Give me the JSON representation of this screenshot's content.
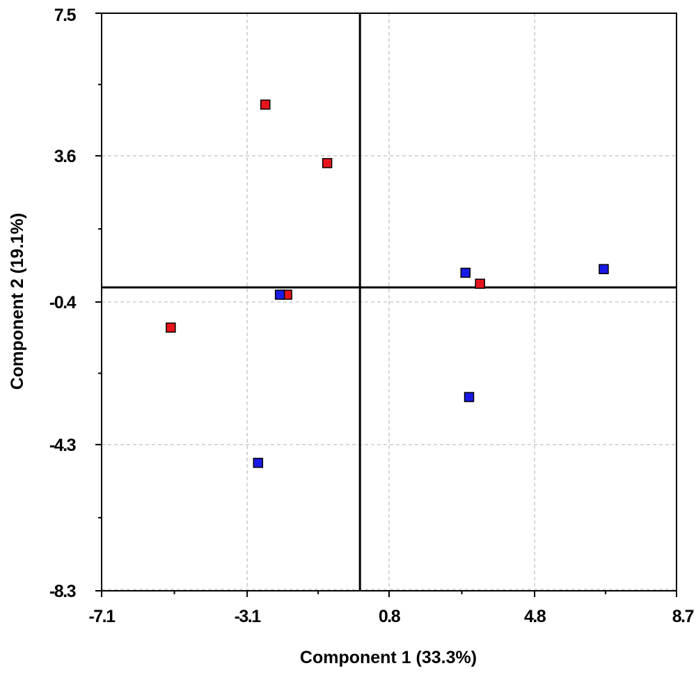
{
  "chart_data": {
    "type": "scatter",
    "title": "",
    "xlabel": "Component 1 (33.3%)",
    "ylabel": "Component 2 (19.1%)",
    "xlim": [
      -7.1,
      8.7
    ],
    "ylim": [
      -8.3,
      7.5
    ],
    "x_ticks": [
      "-7.1",
      "-3.1",
      "0.8",
      "4.8",
      "8.7"
    ],
    "y_ticks": [
      "7.5",
      "3.6",
      "-0.4",
      "-4.3",
      "-8.3"
    ],
    "grid": true,
    "zero_lines": true,
    "series": [
      {
        "color": "#e8141b",
        "points": [
          {
            "x": -2.6,
            "y": 5.0
          },
          {
            "x": -0.9,
            "y": 3.4
          },
          {
            "x": -5.2,
            "y": -1.1
          },
          {
            "x": -2.0,
            "y": -0.2
          },
          {
            "x": 3.3,
            "y": 0.1
          }
        ]
      },
      {
        "color": "#1a1ae6",
        "points": [
          {
            "x": -2.2,
            "y": -0.2
          },
          {
            "x": -2.8,
            "y": -4.8
          },
          {
            "x": 2.9,
            "y": 0.4
          },
          {
            "x": 3.0,
            "y": -3.0
          },
          {
            "x": 6.7,
            "y": 0.5
          }
        ]
      }
    ]
  }
}
